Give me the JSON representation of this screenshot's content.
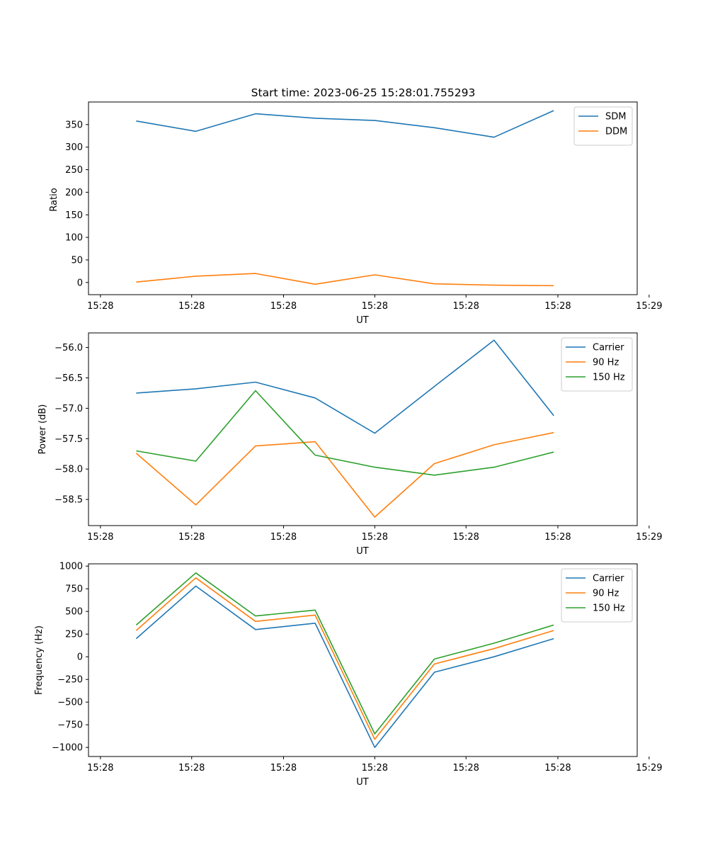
{
  "colors": {
    "blue": "#1f77b4",
    "orange": "#ff7f0e",
    "green": "#2ca02c",
    "axes": "#000000",
    "legend_border": "#cccccc"
  },
  "chart_data": [
    {
      "type": "line",
      "title": "Start time: 2023-06-25 15:28:01.755293",
      "xlabel": "UT",
      "ylabel": "Ratio",
      "x": [
        1,
        2,
        3,
        4,
        5,
        6,
        7,
        8
      ],
      "xlim": [
        0.2,
        9.4
      ],
      "xticks": [
        0.4,
        1.93,
        3.47,
        5.0,
        6.53,
        8.07,
        9.6
      ],
      "xtick_labels": [
        "15:28",
        "15:28",
        "15:28",
        "15:28",
        "15:28",
        "15:28",
        "15:29"
      ],
      "ylim": [
        -27,
        400
      ],
      "yticks": [
        0,
        50,
        100,
        150,
        200,
        250,
        300,
        350
      ],
      "ytick_labels": [
        "0",
        "50",
        "100",
        "150",
        "200",
        "250",
        "300",
        "350"
      ],
      "legend": "top-right",
      "series": [
        {
          "name": "SDM",
          "color": "#1f77b4",
          "values": [
            358,
            335,
            374,
            364,
            359,
            343,
            322,
            381
          ]
        },
        {
          "name": "DDM",
          "color": "#ff7f0e",
          "values": [
            1,
            14,
            20,
            -4,
            17,
            -3,
            -6,
            -7
          ]
        }
      ]
    },
    {
      "type": "line",
      "title": "",
      "xlabel": "UT",
      "ylabel": "Power (dB)",
      "x": [
        1,
        2,
        3,
        4,
        5,
        6,
        7,
        8
      ],
      "xlim": [
        0.2,
        9.4
      ],
      "xticks": [
        0.4,
        1.93,
        3.47,
        5.0,
        6.53,
        8.07,
        9.6
      ],
      "xtick_labels": [
        "15:28",
        "15:28",
        "15:28",
        "15:28",
        "15:28",
        "15:28",
        "15:29"
      ],
      "ylim": [
        -58.93,
        -55.76
      ],
      "yticks": [
        -58.5,
        -58.0,
        -57.5,
        -57.0,
        -56.5,
        -56.0
      ],
      "ytick_labels": [
        "−58.5",
        "−58.0",
        "−57.5",
        "−57.0",
        "−56.5",
        "−56.0"
      ],
      "legend": "top-right",
      "series": [
        {
          "name": "Carrier",
          "color": "#1f77b4",
          "values": [
            -56.75,
            -56.68,
            -56.57,
            -56.83,
            -57.41,
            -56.64,
            -55.88,
            -57.12
          ]
        },
        {
          "name": "90 Hz",
          "color": "#ff7f0e",
          "values": [
            -57.74,
            -58.59,
            -57.62,
            -57.55,
            -58.79,
            -57.91,
            -57.6,
            -57.4
          ]
        },
        {
          "name": "150 Hz",
          "color": "#2ca02c",
          "values": [
            -57.7,
            -57.87,
            -56.71,
            -57.77,
            -57.97,
            -58.1,
            -57.97,
            -57.72
          ]
        }
      ]
    },
    {
      "type": "line",
      "title": "",
      "xlabel": "UT",
      "ylabel": "Frequency (Hz)",
      "x": [
        1,
        2,
        3,
        4,
        5,
        6,
        7,
        8
      ],
      "xlim": [
        0.2,
        9.4
      ],
      "xticks": [
        0.4,
        1.93,
        3.47,
        5.0,
        6.53,
        8.07,
        9.6
      ],
      "xtick_labels": [
        "15:28",
        "15:28",
        "15:28",
        "15:28",
        "15:28",
        "15:28",
        "15:29"
      ],
      "ylim": [
        -1100,
        1025
      ],
      "yticks": [
        -1000,
        -750,
        -500,
        -250,
        0,
        250,
        500,
        750,
        1000
      ],
      "ytick_labels": [
        "−1000",
        "−750",
        "−500",
        "−250",
        "0",
        "250",
        "500",
        "750",
        "1000"
      ],
      "legend": "top-right",
      "series": [
        {
          "name": "Carrier",
          "color": "#1f77b4",
          "values": [
            200,
            780,
            300,
            370,
            -1000,
            -170,
            0,
            200
          ]
        },
        {
          "name": "90 Hz",
          "color": "#ff7f0e",
          "values": [
            290,
            870,
            390,
            460,
            -910,
            -80,
            90,
            290
          ]
        },
        {
          "name": "150 Hz",
          "color": "#2ca02c",
          "values": [
            350,
            925,
            450,
            515,
            -850,
            -25,
            150,
            350
          ]
        }
      ]
    }
  ]
}
